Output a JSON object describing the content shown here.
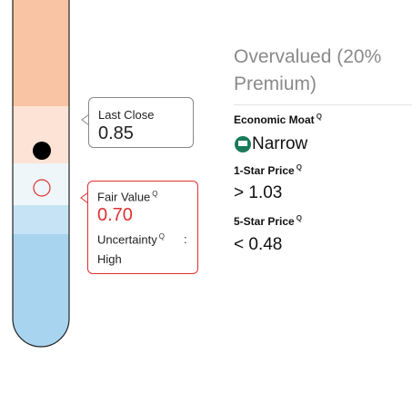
{
  "valuation": {
    "status": "Overvalued (20% Premium)"
  },
  "thermometer": {
    "last_close": {
      "label": "Last Close",
      "value": "0.85"
    },
    "fair_value": {
      "label": "Fair Value",
      "value": "0.70",
      "uncertainty_label": "Uncertainty",
      "separator": ":",
      "uncertainty": "High"
    }
  },
  "details": {
    "moat": {
      "label": "Economic Moat",
      "value": "Narrow"
    },
    "one_star": {
      "label": "1-Star Price",
      "symbol": ">",
      "value": "1.03"
    },
    "five_star": {
      "label": "5-Star Price",
      "symbol": "<",
      "value": "0.48"
    }
  }
}
